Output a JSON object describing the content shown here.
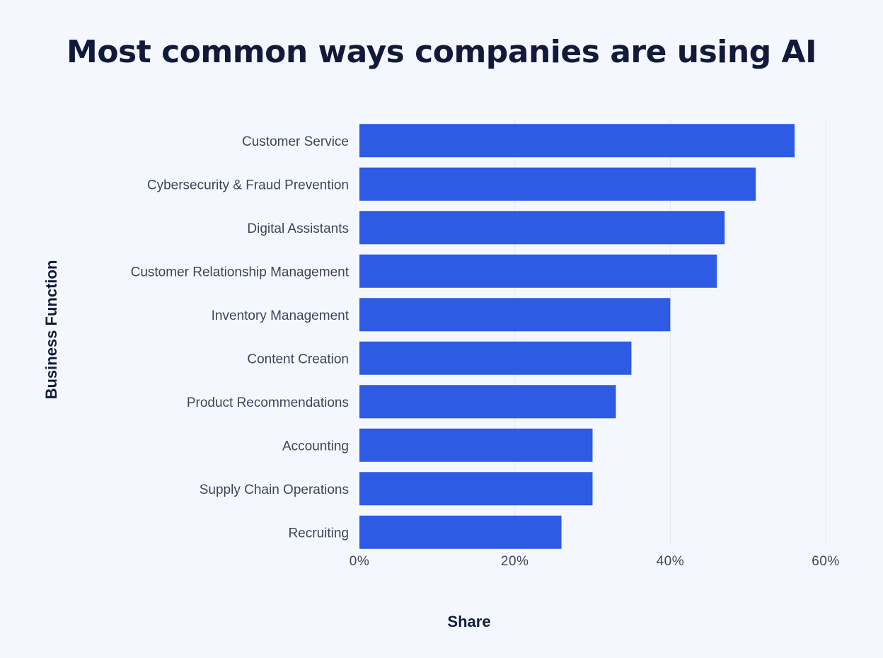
{
  "chart_data": {
    "type": "bar",
    "orientation": "horizontal",
    "title": "Most common ways companies are using AI",
    "xlabel": "Share",
    "ylabel": "Business Function",
    "categories": [
      "Customer Service",
      "Cybersecurity & Fraud Prevention",
      "Digital Assistants",
      "Customer Relationship Management",
      "Inventory Management",
      "Content Creation",
      "Product Recommendations",
      "Accounting",
      "Supply Chain Operations",
      "Recruiting"
    ],
    "values": [
      56,
      51,
      47,
      46,
      40,
      35,
      33,
      30,
      30,
      26
    ],
    "xlim": [
      0,
      60
    ],
    "xticks": [
      0,
      20,
      40,
      60
    ],
    "xtick_labels": [
      "0%",
      "20%",
      "40%",
      "60%"
    ],
    "grid": "vertical",
    "legend": "none",
    "colors": {
      "bar": "#2d5be3",
      "grid": "#e3e8f0",
      "background": "#f4f8fe",
      "title": "#111a3a",
      "label": "#3e4556"
    }
  }
}
